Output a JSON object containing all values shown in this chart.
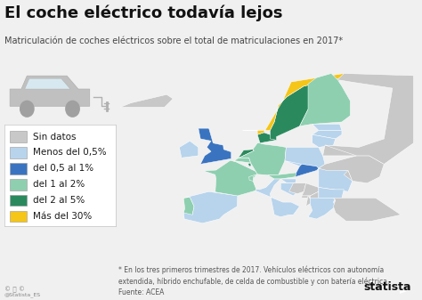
{
  "title": "El coche eléctrico todavía lejos",
  "subtitle": "Matriculación de coches eléctricos sobre el total de matriculaciones en 2017*",
  "footnote": "* En los tres primeros trimestres de 2017. Vehículos eléctricos con autonomía\nextendida, híbrido enchufable, de celda de combustible y con batería eléctrica.",
  "source": "Fuente: ACEA",
  "statista_handle": "@Statista_ES",
  "background_color": "#f0f0f0",
  "map_water_color": "#c9dff0",
  "legend_items": [
    {
      "label": "Sin datos",
      "color": "#c8c8c8"
    },
    {
      "label": "Menos del 0,5%",
      "color": "#b8d4ec"
    },
    {
      "label": "del 0,5 al 1%",
      "color": "#3a74c0"
    },
    {
      "label": "del 1 al 2%",
      "color": "#8ecfb0"
    },
    {
      "label": "del 2 al 5%",
      "color": "#2a8a5e"
    },
    {
      "label": "Más del 30%",
      "color": "#f5c518"
    }
  ],
  "country_categories": {
    "Norway": 5,
    "Sweden": 4,
    "Finland": 3,
    "Denmark": 4,
    "Netherlands": 4,
    "Belgium": 3,
    "Austria": 3,
    "Switzerland": 3,
    "France": 3,
    "Germany": 3,
    "Portugal": 3,
    "Spain": 1,
    "Italy": 1,
    "United Kingdom": 2,
    "Ireland": 1,
    "Luxembourg": 4,
    "Czech Republic": 1,
    "Poland": 1,
    "Hungary": 2,
    "Romania": 1,
    "Bulgaria": 1,
    "Greece": 1,
    "Croatia": 1,
    "Slovakia": 1,
    "Slovenia": 1,
    "Estonia": 1,
    "Latvia": 1,
    "Lithuania": 1,
    "Serbia": 0,
    "Bosnia and Herz.": 0,
    "Albania": 0,
    "Macedonia": 0,
    "Montenegro": 0,
    "Moldova": 0,
    "Ukraine": 0,
    "Belarus": 0,
    "Russia": 0,
    "Turkey": 0,
    "Iceland": 0,
    "Malta": 0,
    "Cyprus": 0
  },
  "colors": [
    "#c8c8c8",
    "#b8d4ec",
    "#3a74c0",
    "#8ecfb0",
    "#2a8a5e",
    "#f5c518"
  ],
  "title_fontsize": 13,
  "subtitle_fontsize": 7,
  "legend_fontsize": 7.5,
  "note_fontsize": 5.5
}
